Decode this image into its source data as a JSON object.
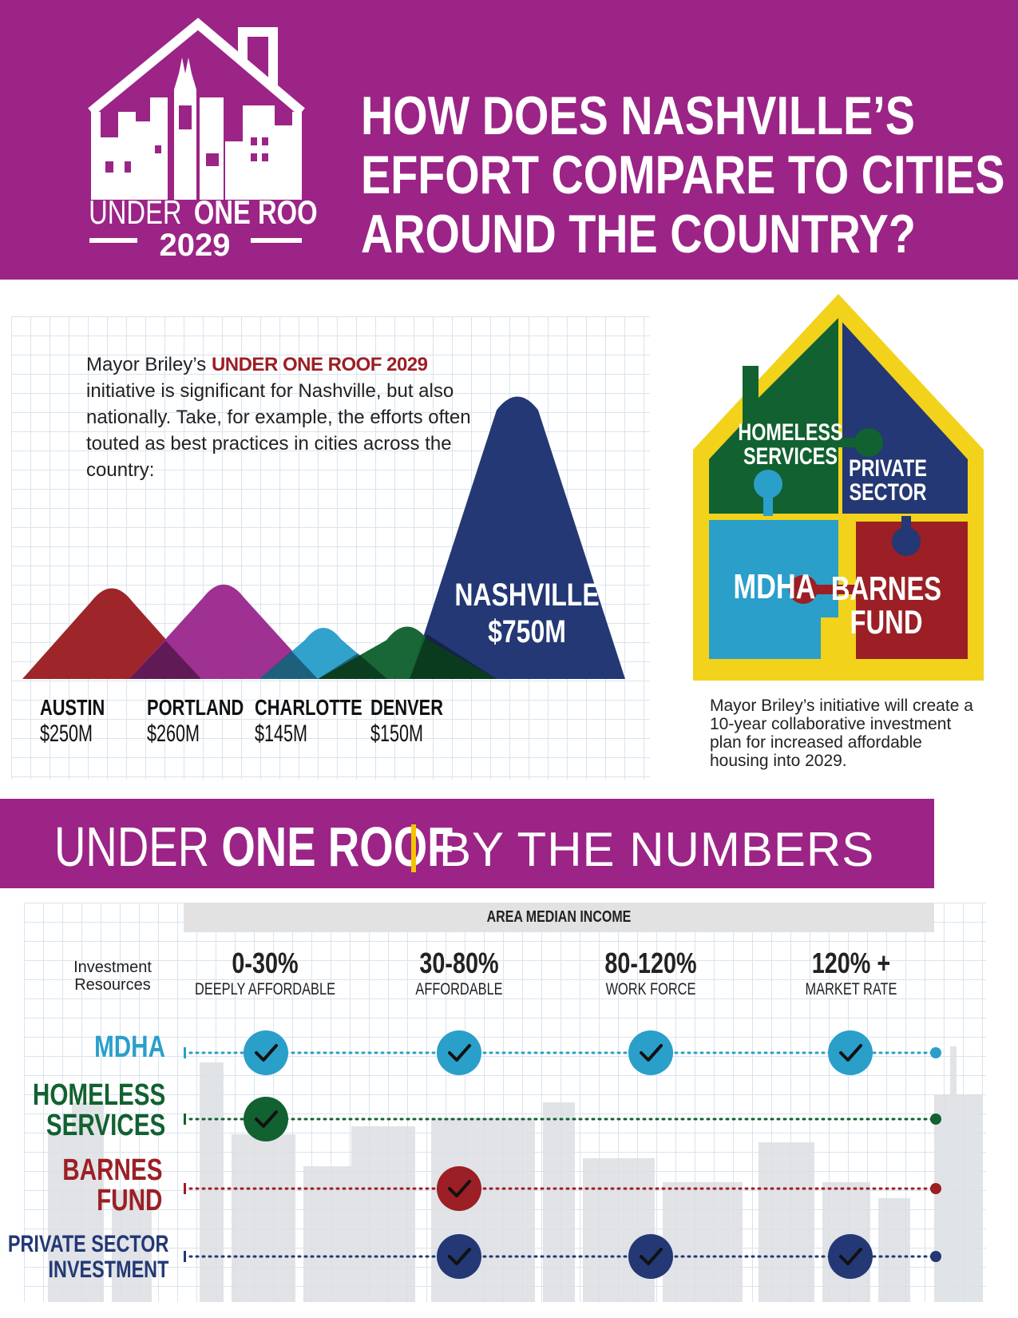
{
  "colors": {
    "purple": "#9b2486",
    "red": "#9b1f24",
    "magenta": "#9b2a8e",
    "blue": "#2a9fc9",
    "green": "#126131",
    "navy": "#233874",
    "yellow": "#f2d21b"
  },
  "logo": {
    "line1_light": "UNDER",
    "line1_bold": "ONE ROOF",
    "line2": "2029"
  },
  "header": {
    "lines": [
      "HOW DOES NASHVILLE’S",
      "EFFORT COMPARE TO CITIES",
      "AROUND THE COUNTRY?"
    ]
  },
  "intro": {
    "before": "Mayor Briley’s ",
    "highlight": "UNDER ONE ROOF 2029",
    "after": " initiative is significant for Nashville, but also nationally. Take, for example, the efforts often touted as best practices in cities across the country:"
  },
  "chart_data": {
    "type": "area",
    "title": "",
    "categories": [
      "AUSTIN",
      "PORTLAND",
      "CHARLOTTE",
      "DENVER",
      "NASHVILLE"
    ],
    "amount_labels": [
      "$250M",
      "$260M",
      "$145M",
      "$150M",
      "$750M"
    ],
    "values": [
      250,
      260,
      145,
      150,
      750
    ],
    "units": "millions USD",
    "colors": [
      "#9b1f24",
      "#9b2a8e",
      "#2a9fc9",
      "#126131",
      "#233874"
    ]
  },
  "house": {
    "pieces": {
      "homeless": "HOMELESS\nSERVICES",
      "private": "PRIVATE\nSECTOR",
      "mdha": "MDHA",
      "barnes": "BARNES\nFUND"
    },
    "caption": "Mayor Briley’s initiative will create a 10-year collaborative investment plan for increased affordable housing into 2029."
  },
  "numbers_banner": {
    "light": "UNDER ",
    "bold": "ONE ROOF",
    "sub": "BY THE NUMBERS"
  },
  "table": {
    "header": "AREA MEDIAN INCOME",
    "row_header": "Investment\nResources",
    "bands": [
      {
        "pct": "0-30%",
        "label": "DEEPLY AFFORDABLE"
      },
      {
        "pct": "30-80%",
        "label": "AFFORDABLE"
      },
      {
        "pct": "80-120%",
        "label": "WORK FORCE"
      },
      {
        "pct": "120% +",
        "label": "MARKET RATE"
      }
    ],
    "rows": [
      {
        "name": "MDHA",
        "color": "#2a9fc9",
        "checks": [
          true,
          true,
          true,
          true
        ]
      },
      {
        "name": "HOMELESS\nSERVICES",
        "color": "#126131",
        "checks": [
          true,
          false,
          false,
          false
        ]
      },
      {
        "name": "BARNES\nFUND",
        "color": "#9b1f24",
        "checks": [
          false,
          true,
          false,
          false
        ]
      },
      {
        "name": "PRIVATE SECTOR\nINVESTMENT",
        "color": "#233874",
        "checks": [
          false,
          true,
          true,
          true
        ]
      }
    ]
  }
}
